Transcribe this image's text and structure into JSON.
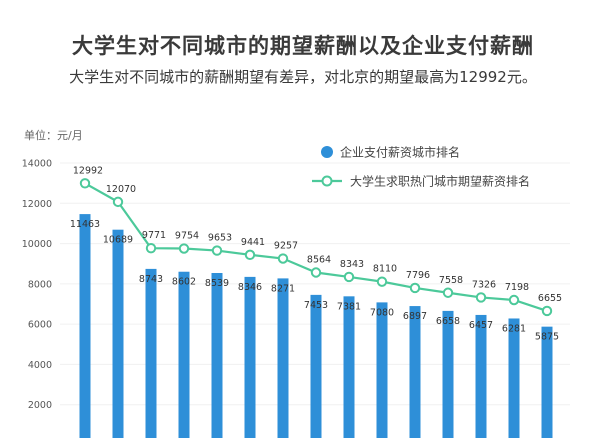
{
  "title": "大学生对不同城市的期望薪酬以及企业支付薪酬",
  "subtitle": "大学生对不同城市的薪酬期望有差异，对北京的期望最高为12992元。",
  "unit_label": "单位：元/月",
  "colors": {
    "bar": "#2e8fd8",
    "line": "#4cc99a"
  },
  "chart_data": {
    "type": "bar",
    "title": "大学生对不同城市的期望薪酬以及企业支付薪酬",
    "ylabel": "单位：元/月",
    "ylim": [
      0,
      14000
    ],
    "yticks": [
      2000,
      4000,
      6000,
      8000,
      10000,
      12000,
      14000
    ],
    "legend_position": "top-right",
    "series": [
      {
        "name": "企业支付薪资城市排名",
        "type": "bar",
        "values": [
          11463,
          10689,
          8743,
          8602,
          8539,
          8346,
          8271,
          7453,
          7381,
          7080,
          6897,
          6658,
          6457,
          6281,
          5875
        ]
      },
      {
        "name": "大学生求职热门城市期望薪资排名",
        "type": "line",
        "values": [
          12992,
          12070,
          9771,
          9754,
          9653,
          9441,
          9257,
          8564,
          8343,
          8110,
          7796,
          7558,
          7326,
          7198,
          6655
        ]
      }
    ]
  }
}
